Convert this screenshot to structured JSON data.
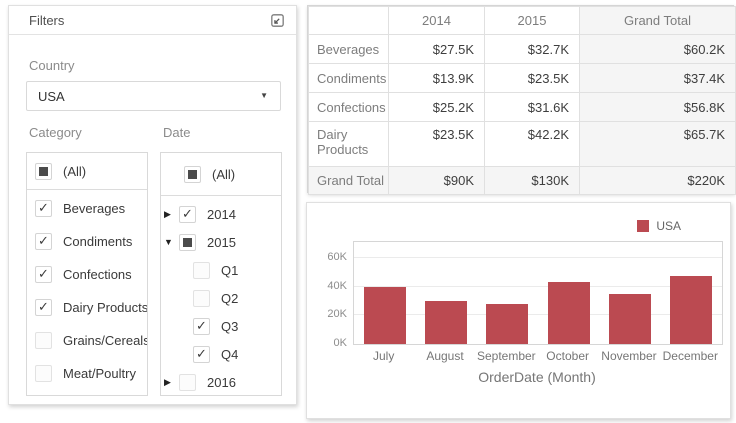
{
  "filters": {
    "title": "Filters",
    "country_label": "Country",
    "country_value": "USA",
    "category_label": "Category",
    "date_label": "Date",
    "all_label": "(All)",
    "category_all_state": "indeterminate",
    "date_all_state": "indeterminate",
    "category_items": [
      {
        "label": "Beverages",
        "state": "checked"
      },
      {
        "label": "Condiments",
        "state": "checked"
      },
      {
        "label": "Confections",
        "state": "checked"
      },
      {
        "label": "Dairy Products",
        "state": "checked"
      },
      {
        "label": "Grains/Cereals",
        "state": "unchecked"
      },
      {
        "label": "Meat/Poultry",
        "state": "unchecked"
      }
    ],
    "date_items": [
      {
        "label": "2014",
        "state": "checked",
        "expander": "collapsed",
        "level": 0
      },
      {
        "label": "2015",
        "state": "indeterminate",
        "expander": "expanded",
        "level": 0
      },
      {
        "label": "Q1",
        "state": "unchecked",
        "expander": "none",
        "level": 1
      },
      {
        "label": "Q2",
        "state": "unchecked",
        "expander": "none",
        "level": 1
      },
      {
        "label": "Q3",
        "state": "checked",
        "expander": "none",
        "level": 1
      },
      {
        "label": "Q4",
        "state": "checked",
        "expander": "none",
        "level": 1
      },
      {
        "label": "2016",
        "state": "unchecked",
        "expander": "collapsed",
        "level": 0
      }
    ]
  },
  "pivot": {
    "column_headers": [
      "2014",
      "2015",
      "Grand Total"
    ],
    "rows": [
      {
        "label": "Beverages",
        "values": [
          "$27.5K",
          "$32.7K",
          "$60.2K"
        ],
        "is_total": false
      },
      {
        "label": "Condiments",
        "values": [
          "$13.9K",
          "$23.5K",
          "$37.4K"
        ],
        "is_total": false
      },
      {
        "label": "Confections",
        "values": [
          "$25.2K",
          "$31.6K",
          "$56.8K"
        ],
        "is_total": false
      },
      {
        "label": "Dairy Products",
        "values": [
          "$23.5K",
          "$42.2K",
          "$65.7K"
        ],
        "is_total": false
      },
      {
        "label": "Grand Total",
        "values": [
          "$90K",
          "$130K",
          "$220K"
        ],
        "is_total": true
      }
    ]
  },
  "chart_data": {
    "type": "bar",
    "title": "",
    "categories": [
      "July",
      "August",
      "September",
      "October",
      "November",
      "December"
    ],
    "series": [
      {
        "name": "USA",
        "color": "#bb4a51",
        "values": [
          40,
          30,
          28,
          43,
          35,
          47
        ]
      }
    ],
    "value_unit": "K",
    "xlabel": "OrderDate (Month)",
    "ylabel": "",
    "yticks": [
      0,
      20,
      40,
      60
    ],
    "ytick_labels": [
      "0K",
      "20K",
      "40K",
      "60K"
    ],
    "ylim": [
      0,
      71
    ],
    "grid": true,
    "legend_position": "top-right"
  },
  "colors": {
    "accent_bar": "#bb4a51",
    "total_background": "#f5f5f5",
    "border": "#e0e0e0"
  }
}
